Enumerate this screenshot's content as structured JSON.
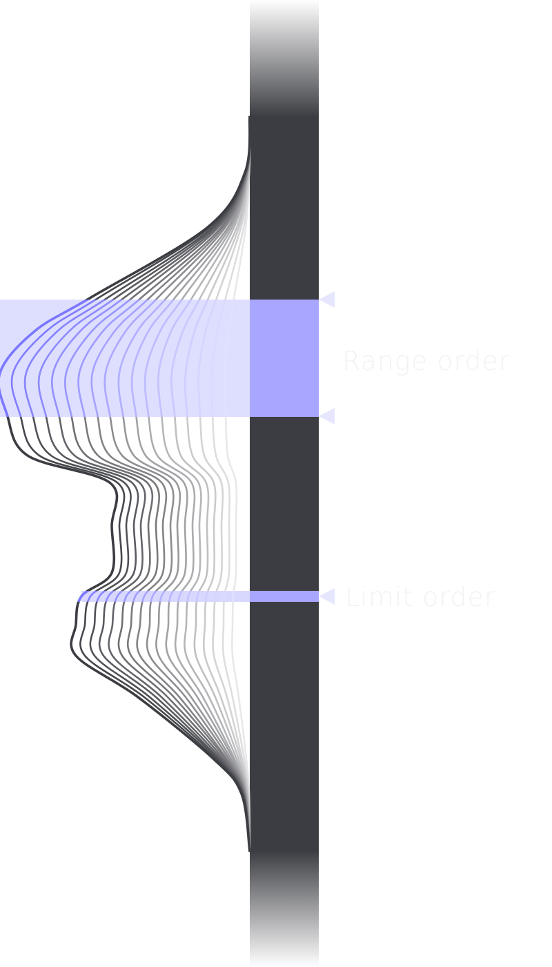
{
  "diagram": {
    "title": "",
    "callouts": [
      {
        "id": "range-order",
        "label": "Range order",
        "marker_count": 2
      },
      {
        "id": "limit-order",
        "label": "Limit order",
        "marker_count": 1
      }
    ],
    "colors": {
      "bar": "#3c3d42",
      "curve_dark": "#3c3d42",
      "accent": "#7b78ff",
      "accent_light": "#d8d8ff",
      "accent_mid": "#a8a6ff",
      "label": "#f2f2f5",
      "marker": "#e6e6ff"
    }
  }
}
